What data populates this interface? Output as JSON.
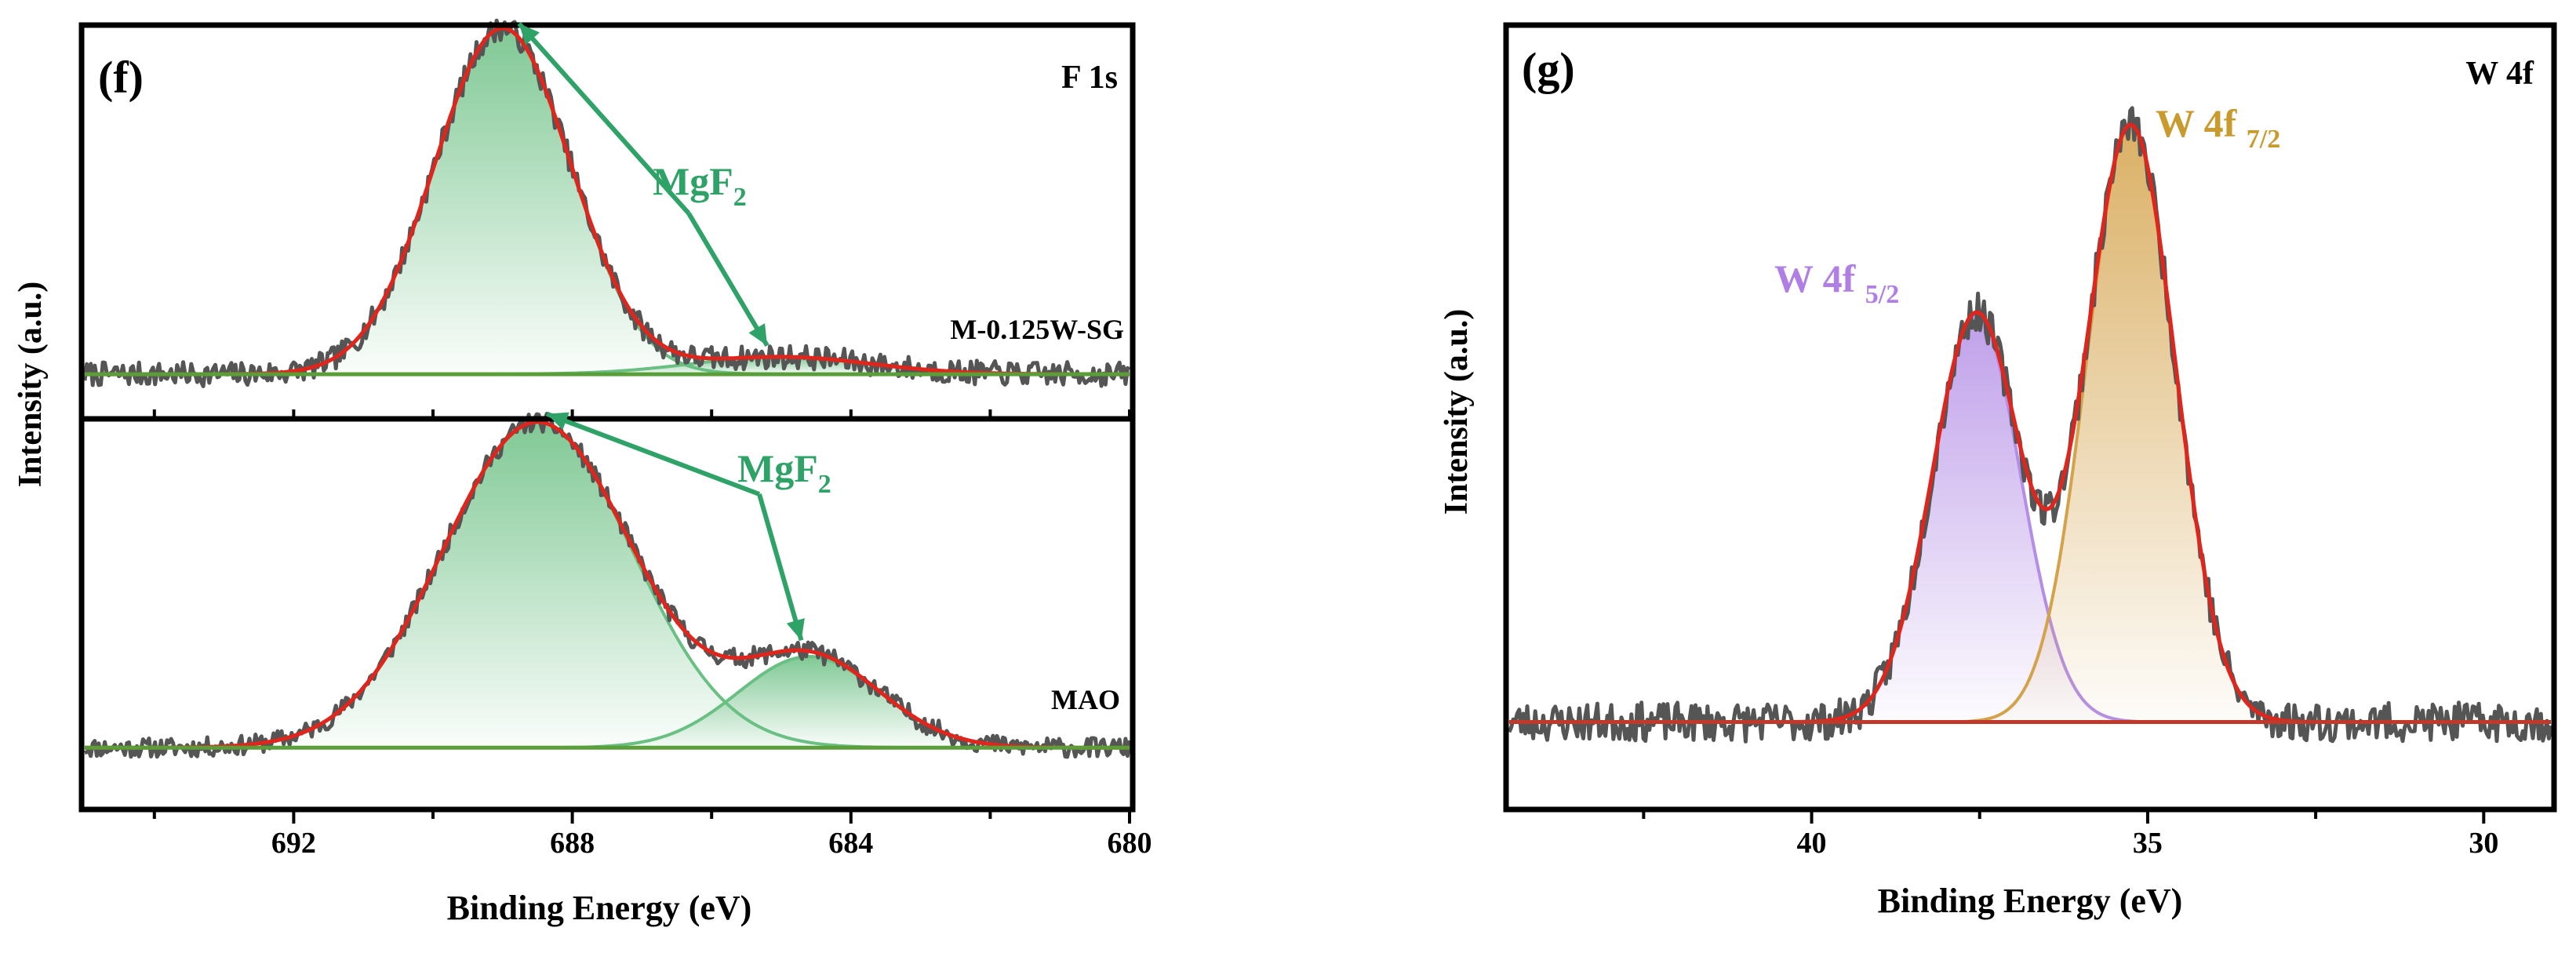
{
  "chart_data": [
    {
      "type": "line",
      "panel": "(f)",
      "title": "F 1s",
      "xlabel": "Binding Energy (eV)",
      "ylabel": "Intensity (a.u.)",
      "xlim": [
        695,
        680
      ],
      "xticks": [
        692,
        688,
        684,
        680
      ],
      "grid": false,
      "subplots": [
        {
          "name": "M-0.125W-SG",
          "label": "M-0.125W-SG",
          "ylim": [
            -0.12,
            1.0
          ],
          "annotation": {
            "text": "MgF",
            "sub": "2",
            "targets_eV": [
              688.9,
              685.0
            ]
          },
          "series": [
            {
              "name": "raw data",
              "color": "#555555",
              "noise": 0.035,
              "seed": 7
            },
            {
              "name": "fit envelope",
              "color": "#e0261c"
            },
            {
              "name": "MgF2 peak 1",
              "color": "#6abf82",
              "center": 689.0,
              "fwhm": 2.3,
              "amp": 1.0
            },
            {
              "name": "MgF2 peak 2",
              "color": "#6abf82",
              "center": 685.0,
              "fwhm": 3.0,
              "amp": 0.05
            },
            {
              "name": "background",
              "color": "#5a9e3a",
              "b0": 0.0,
              "b1": 0.0
            }
          ]
        },
        {
          "name": "MAO",
          "label": "MAO",
          "ylim": [
            -0.18,
            1.0
          ],
          "annotation": {
            "text": "MgF",
            "sub": "2",
            "targets_eV": [
              688.5,
              684.6
            ]
          },
          "series": [
            {
              "name": "raw data",
              "color": "#555555",
              "noise": 0.03,
              "seed": 11
            },
            {
              "name": "fit envelope",
              "color": "#e0261c"
            },
            {
              "name": "MgF2 peak 1",
              "color": "#6abf82",
              "center": 688.5,
              "fwhm": 3.2,
              "amp": 1.0
            },
            {
              "name": "MgF2 peak 2",
              "color": "#6abf82",
              "center": 684.6,
              "fwhm": 2.4,
              "amp": 0.28
            },
            {
              "name": "background",
              "color": "#5a9e3a",
              "b0": 0.0,
              "b1": 0.0
            }
          ]
        }
      ]
    },
    {
      "type": "line",
      "panel": "(g)",
      "title": "W 4f",
      "xlabel": "Binding Energy (eV)",
      "ylabel": "Intensity (a.u.)",
      "xlim": [
        44.5,
        29
      ],
      "xticks": [
        40,
        35,
        30
      ],
      "ylim": [
        -0.13,
        1.07
      ],
      "grid": false,
      "series": [
        {
          "name": "raw data",
          "color": "#555555",
          "noise": 0.03,
          "seed": 23
        },
        {
          "name": "fit envelope",
          "color": "#e0261c"
        },
        {
          "name": "W 4f5/2",
          "label": "W 4f",
          "sub": "5/2",
          "color": "#b48ee6",
          "center": 37.55,
          "fwhm": 1.55,
          "amp": 0.63
        },
        {
          "name": "W 4f7/2",
          "label": "W 4f",
          "sub": "7/2",
          "color": "#d4a24a",
          "center": 35.25,
          "fwhm": 1.55,
          "amp": 0.92
        },
        {
          "name": "background",
          "color": "#c0392b",
          "b0": 0.0,
          "b1": 0.0
        }
      ]
    }
  ]
}
